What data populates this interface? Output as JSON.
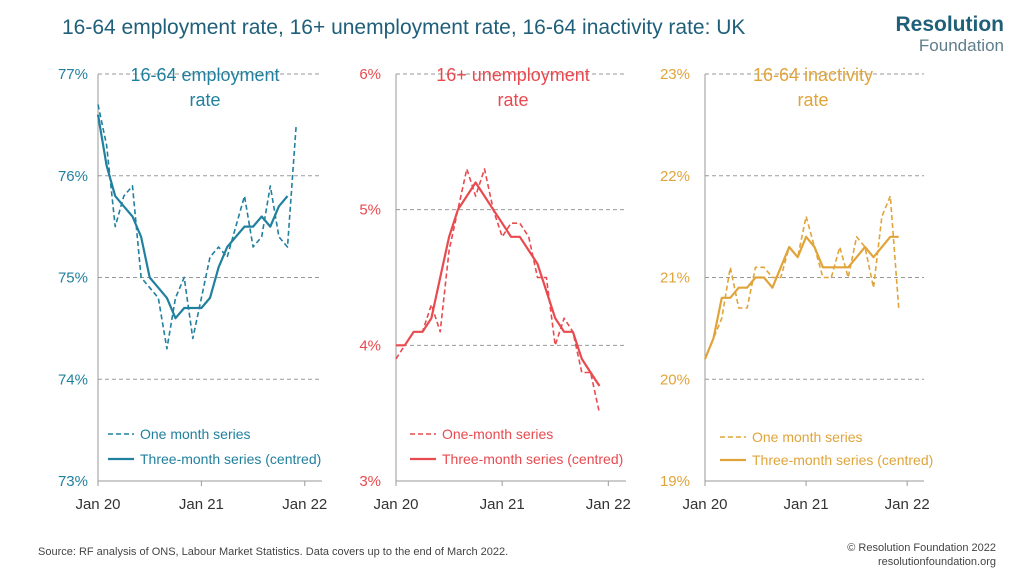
{
  "header": {
    "title": "16-64 employment rate, 16+ unemployment rate, 16-64 inactivity rate: UK",
    "logo_line1": "Resolution",
    "logo_line2": "Foundation"
  },
  "footer": {
    "source": "Source: RF analysis of ONS, Labour Market Statistics. Data covers up to the end of March 2022.",
    "copyright": "© Resolution Foundation 2022",
    "website": "resolutionfoundation.org"
  },
  "chart_data": [
    {
      "type": "line",
      "title": [
        "16-64 employment",
        "rate"
      ],
      "color": "#21809e",
      "ylim": [
        73,
        77
      ],
      "yticks": [
        "73%",
        "74%",
        "75%",
        "76%",
        "77%"
      ],
      "xticks": [
        "Jan 20",
        "Jan 21",
        "Jan 22"
      ],
      "x": [
        "Jan 20",
        "Feb 20",
        "Mar 20",
        "Apr 20",
        "May 20",
        "Jun 20",
        "Jul 20",
        "Aug 20",
        "Sep 20",
        "Oct 20",
        "Nov 20",
        "Dec 20",
        "Jan 21",
        "Feb 21",
        "Mar 21",
        "Apr 21",
        "May 21",
        "Jun 21",
        "Jul 21",
        "Aug 21",
        "Sep 21",
        "Oct 21",
        "Nov 21",
        "Dec 21",
        "Jan 22",
        "Feb 22",
        "Mar 22"
      ],
      "legend": [
        "One month series",
        "Three-month series (centred)"
      ],
      "series": [
        {
          "name": "One month series",
          "style": "dashed",
          "values": [
            76.7,
            76.3,
            75.5,
            75.8,
            75.9,
            75.0,
            74.9,
            74.8,
            74.3,
            74.8,
            75.0,
            74.4,
            74.8,
            75.2,
            75.3,
            75.2,
            75.5,
            75.8,
            75.3,
            75.4,
            75.9,
            75.4,
            75.3,
            76.5,
            null,
            null,
            null
          ]
        },
        {
          "name": "Three-month series (centred)",
          "style": "solid",
          "values": [
            76.6,
            76.1,
            75.8,
            75.7,
            75.6,
            75.4,
            75.0,
            74.9,
            74.8,
            74.6,
            74.7,
            74.7,
            74.7,
            74.8,
            75.1,
            75.3,
            75.4,
            75.5,
            75.5,
            75.6,
            75.5,
            75.7,
            75.8,
            null,
            null,
            null,
            null
          ]
        }
      ]
    },
    {
      "type": "line",
      "title": [
        "16+ unemployment",
        "rate"
      ],
      "color": "#e84a4f",
      "ylim": [
        3,
        6
      ],
      "yticks": [
        "3%",
        "4%",
        "5%",
        "6%"
      ],
      "xticks": [
        "Jan 20",
        "Jan 21",
        "Jan 22"
      ],
      "x": [
        "Jan 20",
        "Feb 20",
        "Mar 20",
        "Apr 20",
        "May 20",
        "Jun 20",
        "Jul 20",
        "Aug 20",
        "Sep 20",
        "Oct 20",
        "Nov 20",
        "Dec 20",
        "Jan 21",
        "Feb 21",
        "Mar 21",
        "Apr 21",
        "May 21",
        "Jun 21",
        "Jul 21",
        "Aug 21",
        "Sep 21",
        "Oct 21",
        "Nov 21",
        "Dec 21",
        "Jan 22",
        "Feb 22",
        "Mar 22"
      ],
      "legend": [
        "One-month series",
        "Three-month series (centred)"
      ],
      "series": [
        {
          "name": "One-month series",
          "style": "dashed",
          "values": [
            3.9,
            4.0,
            4.1,
            4.1,
            4.3,
            4.1,
            4.7,
            5.0,
            5.3,
            5.1,
            5.3,
            5.0,
            4.8,
            4.9,
            4.9,
            4.8,
            4.5,
            4.5,
            4.0,
            4.2,
            4.1,
            3.8,
            3.8,
            3.5,
            null,
            null,
            null
          ]
        },
        {
          "name": "Three-month series (centred)",
          "style": "solid",
          "values": [
            4.0,
            4.0,
            4.1,
            4.1,
            4.2,
            4.5,
            4.8,
            5.0,
            5.1,
            5.2,
            5.1,
            5.0,
            4.9,
            4.8,
            4.8,
            4.7,
            4.6,
            4.4,
            4.2,
            4.1,
            4.1,
            3.9,
            3.8,
            3.7,
            null,
            null,
            null
          ]
        }
      ]
    },
    {
      "type": "line",
      "title": [
        "16-64 inactivity",
        "rate"
      ],
      "color": "#e0a43a",
      "ylim": [
        19,
        23
      ],
      "yticks": [
        "19%",
        "20%",
        "21%",
        "22%",
        "23%"
      ],
      "xticks": [
        "Jan 20",
        "Jan 21",
        "Jan 22"
      ],
      "x": [
        "Jan 20",
        "Feb 20",
        "Mar 20",
        "Apr 20",
        "May 20",
        "Jun 20",
        "Jul 20",
        "Aug 20",
        "Sep 20",
        "Oct 20",
        "Nov 20",
        "Dec 20",
        "Jan 21",
        "Feb 21",
        "Mar 21",
        "Apr 21",
        "May 21",
        "Jun 21",
        "Jul 21",
        "Aug 21",
        "Sep 21",
        "Oct 21",
        "Nov 21",
        "Dec 21",
        "Jan 22",
        "Feb 22",
        "Mar 22"
      ],
      "legend": [
        "One month series",
        "Three-month series (centred)"
      ],
      "series": [
        {
          "name": "One month series",
          "style": "dashed",
          "values": [
            20.2,
            20.4,
            20.6,
            21.1,
            20.7,
            20.7,
            21.1,
            21.1,
            21.0,
            21.0,
            21.3,
            21.2,
            21.6,
            21.3,
            21.0,
            21.0,
            21.3,
            21.0,
            21.4,
            21.3,
            20.9,
            21.6,
            21.8,
            20.7,
            null,
            null,
            null
          ]
        },
        {
          "name": "Three-month series (centred)",
          "style": "solid",
          "values": [
            20.2,
            20.4,
            20.8,
            20.8,
            20.9,
            20.9,
            21.0,
            21.0,
            20.9,
            21.1,
            21.3,
            21.2,
            21.4,
            21.3,
            21.1,
            21.1,
            21.1,
            21.1,
            21.2,
            21.3,
            21.2,
            21.3,
            21.4,
            21.4,
            null,
            null,
            null
          ]
        }
      ]
    }
  ]
}
